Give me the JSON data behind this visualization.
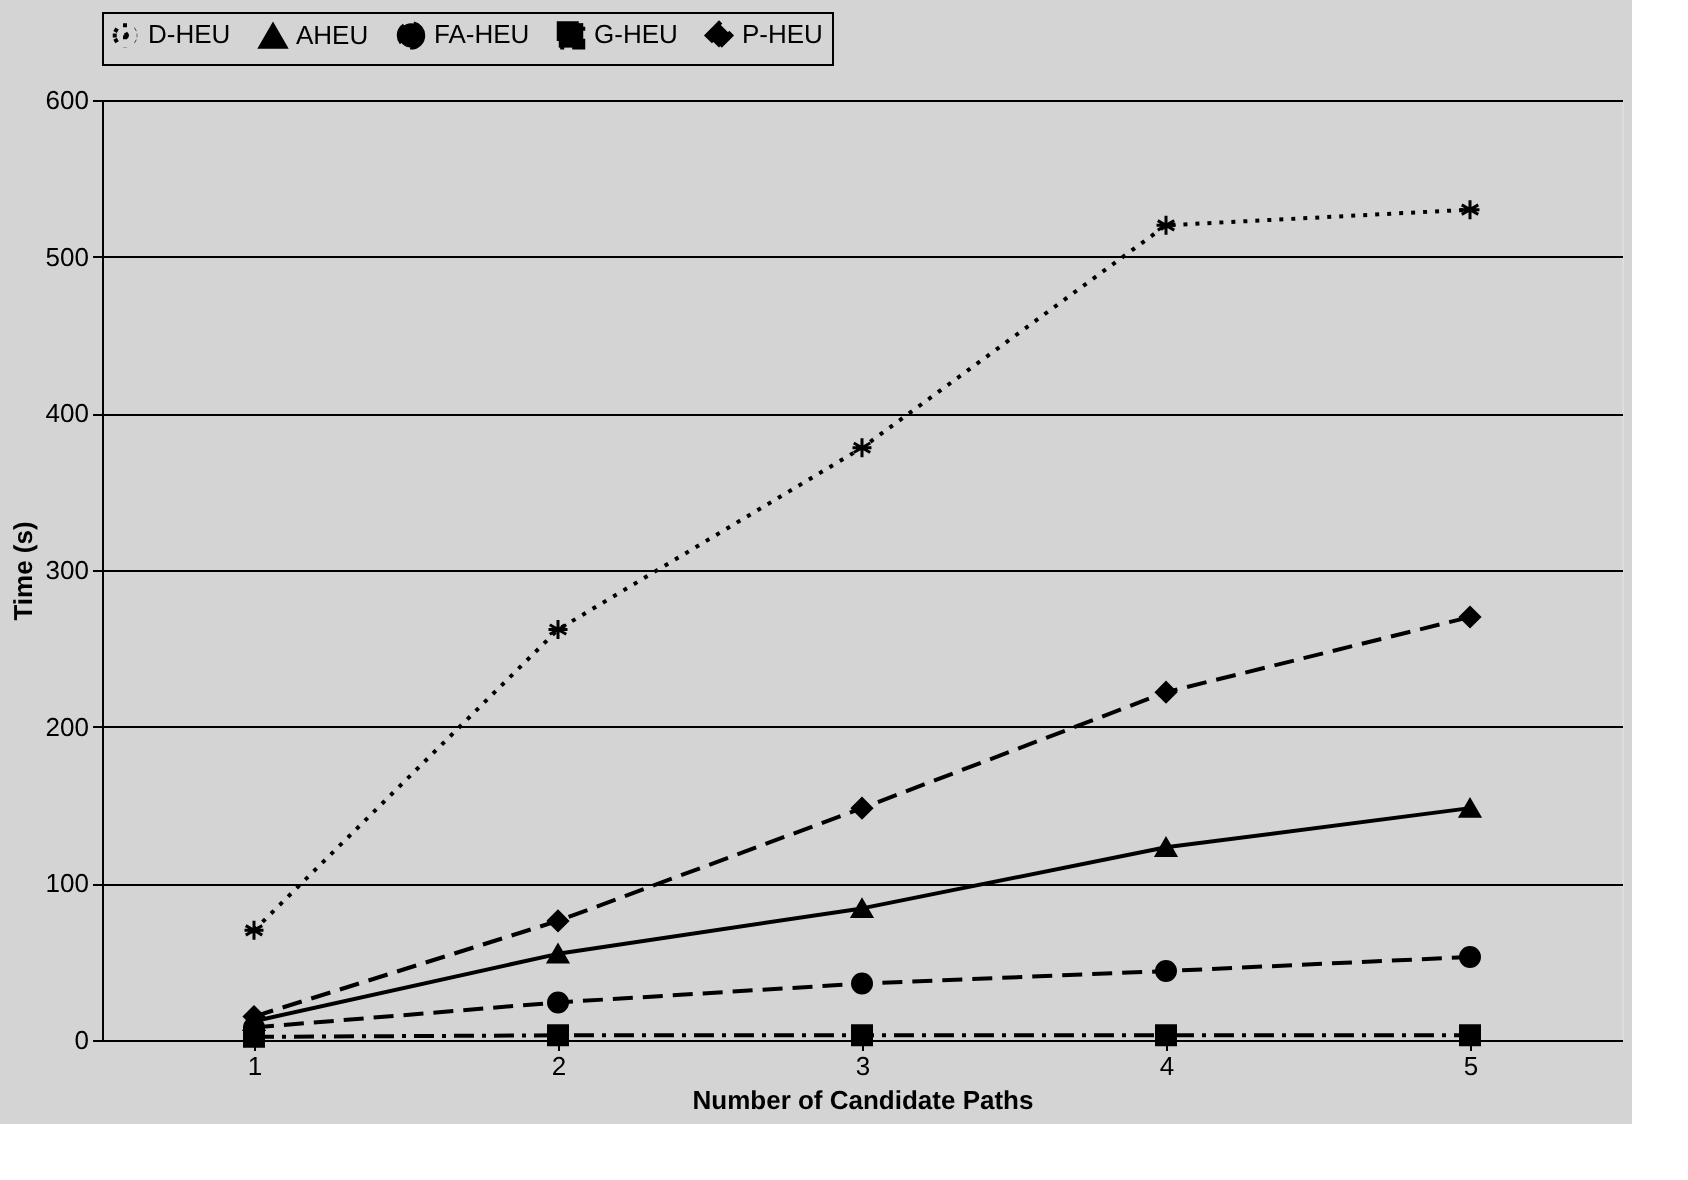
{
  "chart_data": {
    "type": "line",
    "xlabel": "Number of Candidate Paths",
    "ylabel": "Time (s)",
    "categories": [
      "1",
      "2",
      "3",
      "4",
      "5"
    ],
    "series": [
      {
        "name": "D-HEU",
        "color": "#000000",
        "marker": "cross",
        "line_style": "dotted",
        "values": [
          70,
          262,
          378,
          520,
          530
        ]
      },
      {
        "name": "AHEU",
        "color": "#000000",
        "marker": "triangle",
        "line_style": "solid",
        "values": [
          12,
          55,
          84,
          123,
          148
        ]
      },
      {
        "name": "FA-HEU",
        "color": "#000000",
        "marker": "circle",
        "line_style": "dashed",
        "values": [
          8,
          24,
          36,
          44,
          53
        ]
      },
      {
        "name": "G-HEU",
        "color": "#000000",
        "marker": "square",
        "line_style": "dashdot",
        "values": [
          2,
          3,
          3,
          3,
          3
        ]
      },
      {
        "name": "P-HEU",
        "color": "#000000",
        "marker": "diamond",
        "line_style": "dashed",
        "values": [
          15,
          76,
          148,
          222,
          270
        ]
      }
    ],
    "ylim": [
      0,
      600
    ],
    "yticks": [
      0,
      100,
      200,
      300,
      400,
      500,
      600
    ],
    "grid": "y",
    "legend": "top"
  }
}
